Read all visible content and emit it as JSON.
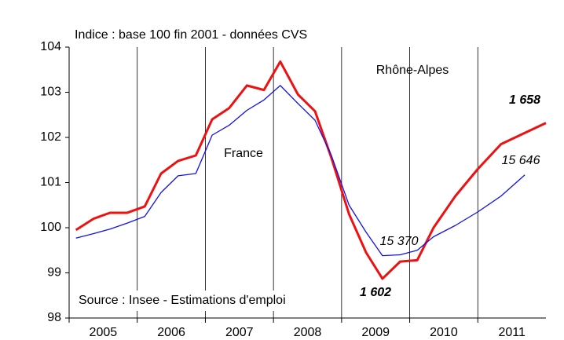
{
  "chart_data": {
    "type": "line",
    "subtitle": "Indice : base 100 fin 2001 - données CVS",
    "source": "Source : Insee - Estimations d'emploi",
    "x": [
      2005.1,
      2005.36,
      2005.6,
      2005.85,
      2006.11,
      2006.35,
      2006.6,
      2006.86,
      2007.1,
      2007.35,
      2007.61,
      2007.86,
      2008.1,
      2008.36,
      2008.61,
      2008.85,
      2009.11,
      2009.36,
      2009.6,
      2009.86,
      2010.11,
      2010.35,
      2010.67,
      2011.0,
      2011.34,
      2011.69,
      2012.0
    ],
    "series": [
      {
        "name": "Rhône-Alpes",
        "color": "#ee1111",
        "width": 3,
        "values": [
          99.95,
          100.2,
          100.33,
          100.33,
          100.47,
          101.2,
          101.48,
          101.6,
          102.4,
          102.65,
          103.15,
          103.05,
          103.68,
          102.95,
          102.58,
          101.55,
          100.3,
          99.45,
          98.87,
          99.25,
          99.28,
          100.0,
          100.7,
          101.3,
          101.85,
          102.1,
          102.32
        ]
      },
      {
        "name": "France",
        "color": "#1111ee",
        "width": 1.3,
        "values": [
          99.77,
          99.87,
          99.97,
          100.1,
          100.25,
          100.78,
          101.15,
          101.2,
          102.05,
          102.27,
          102.6,
          102.83,
          103.15,
          102.75,
          102.38,
          101.6,
          100.5,
          99.9,
          99.38,
          99.4,
          99.5,
          99.8,
          100.05,
          100.35,
          100.7,
          101.17,
          null
        ]
      }
    ],
    "annotations": [
      "1 658",
      "15 646",
      "15 370",
      "1 602"
    ],
    "xlim": [
      2005,
      2012
    ],
    "xticks": [
      2005,
      2006,
      2007,
      2008,
      2009,
      2010,
      2011
    ],
    "ylim": [
      98,
      104
    ],
    "yticks": [
      98,
      99,
      100,
      101,
      102,
      103,
      104
    ],
    "grid": true
  }
}
